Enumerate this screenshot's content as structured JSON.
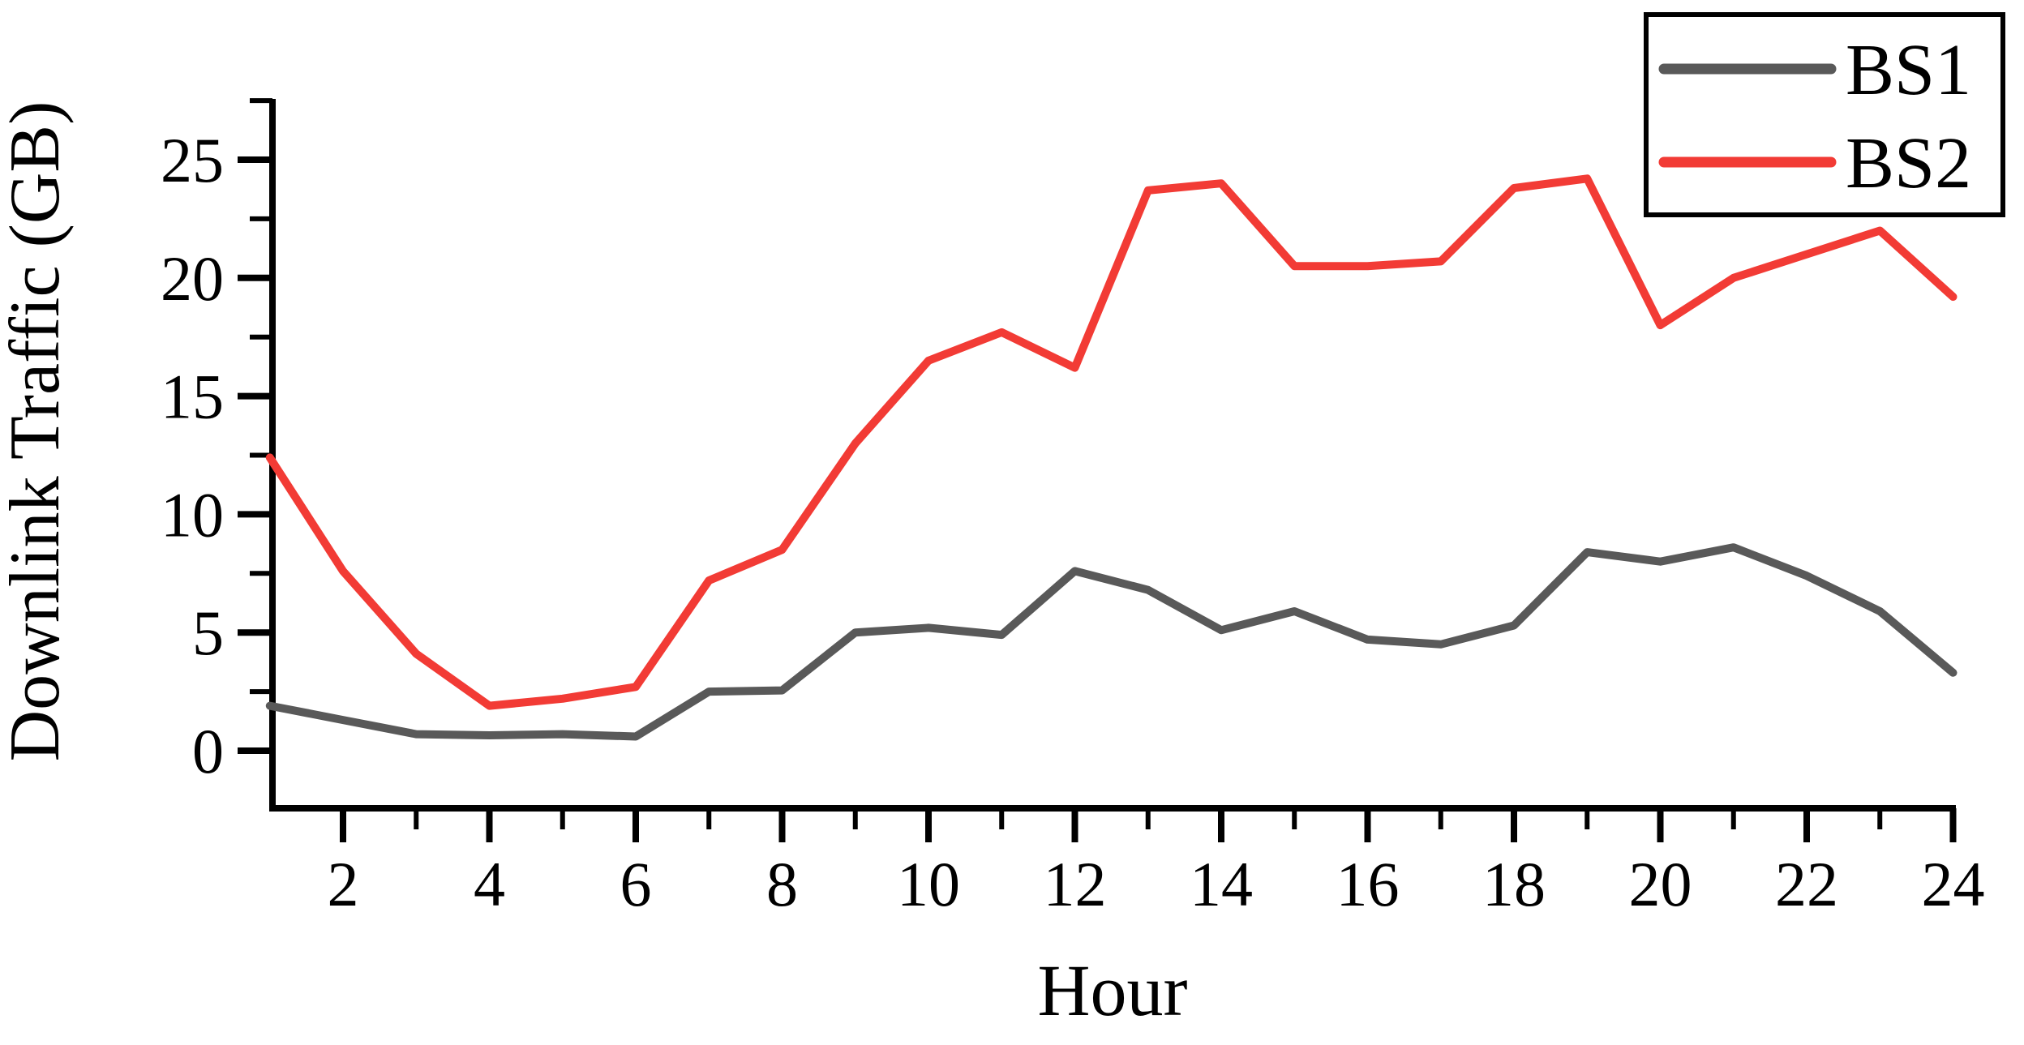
{
  "chart_data": {
    "type": "line",
    "title": "",
    "xlabel": "Hour",
    "ylabel": "Downlink Traffic (GB)",
    "x": [
      1,
      2,
      3,
      4,
      5,
      6,
      7,
      8,
      9,
      10,
      11,
      12,
      13,
      14,
      15,
      16,
      17,
      18,
      19,
      20,
      21,
      22,
      23,
      24
    ],
    "series": [
      {
        "name": "BS1",
        "color": "#595959",
        "values": [
          1.9,
          1.3,
          0.7,
          0.65,
          0.7,
          0.6,
          2.5,
          2.55,
          5.0,
          5.2,
          4.9,
          7.6,
          6.8,
          5.1,
          5.9,
          4.7,
          4.5,
          5.3,
          8.4,
          8.0,
          8.6,
          7.4,
          5.9,
          3.3
        ]
      },
      {
        "name": "BS2",
        "color": "#F23B35",
        "values": [
          12.4,
          7.6,
          4.1,
          1.9,
          2.2,
          2.7,
          7.2,
          8.5,
          13.0,
          16.5,
          17.7,
          16.2,
          23.7,
          24.0,
          20.5,
          20.5,
          20.7,
          23.8,
          24.2,
          18.0,
          20.0,
          21.0,
          22.0,
          19.2
        ]
      }
    ],
    "xlim": [
      1,
      24
    ],
    "ylim": [
      -2.5,
      27.5
    ],
    "xticks_major": [
      2,
      4,
      6,
      8,
      10,
      12,
      14,
      16,
      18,
      20,
      22,
      24
    ],
    "xticks_minor": [
      3,
      5,
      7,
      9,
      11,
      13,
      15,
      17,
      19,
      21,
      23
    ],
    "yticks_major": [
      0,
      5,
      10,
      15,
      20,
      25
    ],
    "yticks_minor": [
      2.5,
      7.5,
      12.5,
      17.5,
      22.5,
      27.5
    ],
    "grid": false,
    "legend_position": "top-right",
    "axis_color": "#000000",
    "background_color": "#ffffff"
  }
}
